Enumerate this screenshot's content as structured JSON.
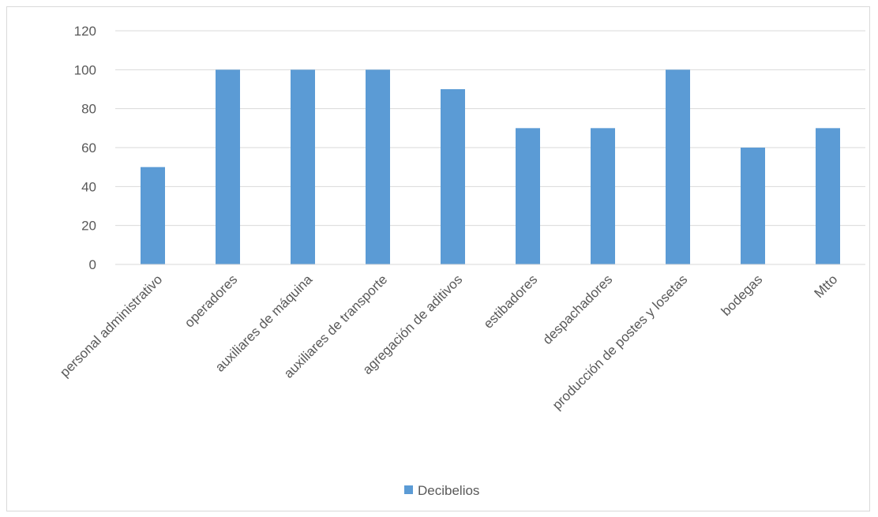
{
  "chart_data": {
    "type": "bar",
    "categories": [
      "personal administrativo",
      "operadores",
      "auxiliares de máquina",
      "auxiliares de transporte",
      "agregación de aditivos",
      "estibadores",
      "despachadores",
      "producción de postes y losetas",
      "bodegas",
      "Mtto"
    ],
    "series": [
      {
        "name": "Decibelios",
        "values": [
          50,
          100,
          100,
          100,
          90,
          70,
          70,
          100,
          60,
          70
        ],
        "color": "#5b9bd5"
      }
    ],
    "ylim": [
      0,
      120
    ],
    "yticks": [
      0,
      20,
      40,
      60,
      80,
      100,
      120
    ],
    "grid": true,
    "legend_position": "bottom"
  }
}
